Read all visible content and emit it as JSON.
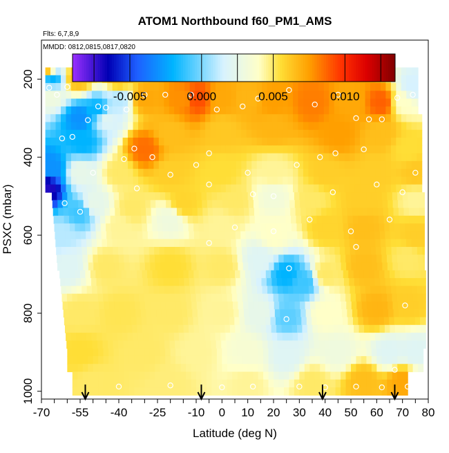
{
  "chart_data": {
    "type": "heatmap",
    "title": "ATOM1 Northbound f60_PM1_AMS",
    "notes": [
      "Flts: 6,7,8,9",
      "MMDD: 0812,0815,0817,0820"
    ],
    "xlabel": "Latitude (deg N)",
    "ylabel": "PSXC (mbar)",
    "xlim": [
      -70,
      80
    ],
    "ylim": [
      1020,
      100
    ],
    "x_ticks": [
      -70,
      -55,
      -40,
      -25,
      -10,
      0,
      10,
      20,
      30,
      40,
      50,
      60,
      70,
      80
    ],
    "y_ticks": [
      200,
      400,
      600,
      800,
      1000
    ],
    "colorbar": {
      "min": -0.009,
      "max": 0.0135,
      "ticks": [
        -0.005,
        0.0,
        0.005,
        0.01
      ],
      "tick_labels": [
        "-0.005",
        "0.000",
        "0.005",
        "0.010"
      ],
      "stops": [
        {
          "v": -0.009,
          "c": "#9b30ff"
        },
        {
          "v": -0.0065,
          "c": "#0000b4"
        },
        {
          "v": -0.0045,
          "c": "#1e5fff"
        },
        {
          "v": -0.002,
          "c": "#00b4ff"
        },
        {
          "v": 0.0015,
          "c": "#d7f2ff"
        },
        {
          "v": 0.004,
          "c": "#ffffc8"
        },
        {
          "v": 0.0055,
          "c": "#ffde36"
        },
        {
          "v": 0.0075,
          "c": "#ff9f00"
        },
        {
          "v": 0.0098,
          "c": "#ff3000"
        },
        {
          "v": 0.0115,
          "c": "#dc0000"
        },
        {
          "v": 0.0135,
          "c": "#800000"
        }
      ]
    },
    "arrow_latitudes": [
      -53,
      -8,
      39,
      67
    ],
    "control_points": [
      {
        "lat": -68,
        "p": 180,
        "v": 0.0062
      },
      {
        "lat": -66,
        "p": 200,
        "v": -0.002
      },
      {
        "lat": -66,
        "p": 240,
        "v": 0.003
      },
      {
        "lat": -68,
        "p": 480,
        "v": -0.007
      },
      {
        "lat": -66,
        "p": 430,
        "v": -0.003
      },
      {
        "lat": -56,
        "p": 200,
        "v": 0.0065
      },
      {
        "lat": -55,
        "p": 300,
        "v": -0.003
      },
      {
        "lat": -54,
        "p": 360,
        "v": -0.002
      },
      {
        "lat": -48,
        "p": 280,
        "v": -0.002
      },
      {
        "lat": -55,
        "p": 540,
        "v": -0.001
      },
      {
        "lat": -40,
        "p": 200,
        "v": 0.0068
      },
      {
        "lat": -40,
        "p": 250,
        "v": 0.001
      },
      {
        "lat": -45,
        "p": 300,
        "v": 0.002
      },
      {
        "lat": -30,
        "p": 250,
        "v": 0.0072
      },
      {
        "lat": -15,
        "p": 250,
        "v": 0.0078
      },
      {
        "lat": -10,
        "p": 250,
        "v": 0.0092
      },
      {
        "lat": 0,
        "p": 250,
        "v": 0.0072
      },
      {
        "lat": 10,
        "p": 250,
        "v": 0.0068
      },
      {
        "lat": 20,
        "p": 260,
        "v": 0.0075
      },
      {
        "lat": 35,
        "p": 260,
        "v": 0.0082
      },
      {
        "lat": 50,
        "p": 260,
        "v": 0.0072
      },
      {
        "lat": 62,
        "p": 260,
        "v": 0.0088
      },
      {
        "lat": 70,
        "p": 260,
        "v": 0.004
      },
      {
        "lat": 74,
        "p": 220,
        "v": 0.0015
      },
      {
        "lat": -30,
        "p": 380,
        "v": 0.0085
      },
      {
        "lat": -20,
        "p": 340,
        "v": 0.0065
      },
      {
        "lat": 0,
        "p": 330,
        "v": 0.0062
      },
      {
        "lat": 20,
        "p": 320,
        "v": 0.0068
      },
      {
        "lat": 45,
        "p": 340,
        "v": 0.0075
      },
      {
        "lat": 62,
        "p": 340,
        "v": 0.0065
      },
      {
        "lat": 72,
        "p": 380,
        "v": 0.0055
      },
      {
        "lat": -55,
        "p": 440,
        "v": 0.0025
      },
      {
        "lat": -40,
        "p": 440,
        "v": 0.005
      },
      {
        "lat": -20,
        "p": 440,
        "v": 0.006
      },
      {
        "lat": 0,
        "p": 440,
        "v": 0.0055
      },
      {
        "lat": 20,
        "p": 440,
        "v": 0.0045
      },
      {
        "lat": 40,
        "p": 440,
        "v": 0.006
      },
      {
        "lat": 60,
        "p": 440,
        "v": 0.006
      },
      {
        "lat": 75,
        "p": 440,
        "v": 0.0062
      },
      {
        "lat": -50,
        "p": 520,
        "v": 0.0025
      },
      {
        "lat": -35,
        "p": 530,
        "v": 0.005
      },
      {
        "lat": -15,
        "p": 520,
        "v": 0.0058
      },
      {
        "lat": 5,
        "p": 510,
        "v": 0.005
      },
      {
        "lat": 20,
        "p": 500,
        "v": 0.0032
      },
      {
        "lat": 35,
        "p": 510,
        "v": 0.005
      },
      {
        "lat": 55,
        "p": 510,
        "v": 0.006
      },
      {
        "lat": 75,
        "p": 510,
        "v": 0.0045
      },
      {
        "lat": -62,
        "p": 600,
        "v": 0.001
      },
      {
        "lat": -40,
        "p": 580,
        "v": 0.0045
      },
      {
        "lat": -20,
        "p": 560,
        "v": 0.003
      },
      {
        "lat": 0,
        "p": 580,
        "v": 0.0045
      },
      {
        "lat": 20,
        "p": 600,
        "v": 0.004
      },
      {
        "lat": 40,
        "p": 580,
        "v": 0.0058
      },
      {
        "lat": 55,
        "p": 580,
        "v": 0.0065
      },
      {
        "lat": 75,
        "p": 600,
        "v": 0.006
      },
      {
        "lat": -60,
        "p": 680,
        "v": 0.002
      },
      {
        "lat": -45,
        "p": 680,
        "v": 0.005
      },
      {
        "lat": -20,
        "p": 680,
        "v": 0.0055
      },
      {
        "lat": 0,
        "p": 680,
        "v": 0.005
      },
      {
        "lat": 15,
        "p": 660,
        "v": 0.002
      },
      {
        "lat": 25,
        "p": 700,
        "v": -0.002
      },
      {
        "lat": 32,
        "p": 720,
        "v": -0.001
      },
      {
        "lat": 40,
        "p": 700,
        "v": 0.005
      },
      {
        "lat": 55,
        "p": 680,
        "v": 0.0065
      },
      {
        "lat": 72,
        "p": 660,
        "v": 0.005
      },
      {
        "lat": -55,
        "p": 800,
        "v": 0.005
      },
      {
        "lat": -40,
        "p": 800,
        "v": 0.0052
      },
      {
        "lat": -20,
        "p": 800,
        "v": 0.005
      },
      {
        "lat": 0,
        "p": 800,
        "v": 0.0045
      },
      {
        "lat": 15,
        "p": 800,
        "v": 0.0025
      },
      {
        "lat": 25,
        "p": 810,
        "v": -0.0005
      },
      {
        "lat": 40,
        "p": 800,
        "v": 0.004
      },
      {
        "lat": 60,
        "p": 790,
        "v": 0.0068
      },
      {
        "lat": 72,
        "p": 780,
        "v": 0.006
      },
      {
        "lat": -55,
        "p": 900,
        "v": 0.0055
      },
      {
        "lat": -30,
        "p": 900,
        "v": 0.005
      },
      {
        "lat": -10,
        "p": 900,
        "v": 0.0045
      },
      {
        "lat": 10,
        "p": 900,
        "v": 0.0035
      },
      {
        "lat": 25,
        "p": 910,
        "v": 0.002
      },
      {
        "lat": 45,
        "p": 900,
        "v": 0.003
      },
      {
        "lat": 65,
        "p": 900,
        "v": 0.002
      },
      {
        "lat": 75,
        "p": 900,
        "v": 0.002
      },
      {
        "lat": -50,
        "p": 980,
        "v": 0.005
      },
      {
        "lat": -20,
        "p": 980,
        "v": 0.0048
      },
      {
        "lat": 10,
        "p": 980,
        "v": 0.0045
      },
      {
        "lat": 35,
        "p": 980,
        "v": 0.005
      },
      {
        "lat": 55,
        "p": 975,
        "v": 0.0065
      },
      {
        "lat": 70,
        "p": 975,
        "v": 0.0072
      }
    ],
    "sample_points": [
      {
        "lat": -67,
        "p": 222
      },
      {
        "lat": -60,
        "p": 220
      },
      {
        "lat": -64,
        "p": 240
      },
      {
        "lat": -48,
        "p": 270
      },
      {
        "lat": -45,
        "p": 273
      },
      {
        "lat": -52,
        "p": 305
      },
      {
        "lat": -58,
        "p": 348
      },
      {
        "lat": -62,
        "p": 352
      },
      {
        "lat": -61,
        "p": 518
      },
      {
        "lat": -55,
        "p": 540
      },
      {
        "lat": -37,
        "p": 278
      },
      {
        "lat": -30,
        "p": 240
      },
      {
        "lat": -22,
        "p": 240
      },
      {
        "lat": -12,
        "p": 240
      },
      {
        "lat": -2,
        "p": 278
      },
      {
        "lat": 8,
        "p": 270
      },
      {
        "lat": 14,
        "p": 250
      },
      {
        "lat": 26,
        "p": 228
      },
      {
        "lat": 36,
        "p": 265
      },
      {
        "lat": 45,
        "p": 240
      },
      {
        "lat": 52,
        "p": 300
      },
      {
        "lat": 57,
        "p": 303
      },
      {
        "lat": 62,
        "p": 303
      },
      {
        "lat": 68,
        "p": 248
      },
      {
        "lat": 74,
        "p": 240
      },
      {
        "lat": 55,
        "p": 380
      },
      {
        "lat": 44,
        "p": 390
      },
      {
        "lat": 38,
        "p": 400
      },
      {
        "lat": 29,
        "p": 420
      },
      {
        "lat": -5,
        "p": 390
      },
      {
        "lat": -27,
        "p": 400
      },
      {
        "lat": -10,
        "p": 420
      },
      {
        "lat": -20,
        "p": 445
      },
      {
        "lat": -33,
        "p": 480
      },
      {
        "lat": -5,
        "p": 470
      },
      {
        "lat": 12,
        "p": 495
      },
      {
        "lat": 20,
        "p": 500
      },
      {
        "lat": 43,
        "p": 490
      },
      {
        "lat": 60,
        "p": 470
      },
      {
        "lat": 70,
        "p": 490
      },
      {
        "lat": 5,
        "p": 580
      },
      {
        "lat": -5,
        "p": 620
      },
      {
        "lat": 20,
        "p": 590
      },
      {
        "lat": 34,
        "p": 560
      },
      {
        "lat": 50,
        "p": 590
      },
      {
        "lat": 52,
        "p": 630
      },
      {
        "lat": 65,
        "p": 560
      },
      {
        "lat": 26,
        "p": 685
      },
      {
        "lat": 25,
        "p": 815
      },
      {
        "lat": 71,
        "p": 780
      },
      {
        "lat": 67,
        "p": 945
      },
      {
        "lat": -40,
        "p": 988
      },
      {
        "lat": -20,
        "p": 985
      },
      {
        "lat": 0,
        "p": 990
      },
      {
        "lat": 12,
        "p": 988
      },
      {
        "lat": 30,
        "p": 988
      },
      {
        "lat": 40,
        "p": 990
      },
      {
        "lat": 52,
        "p": 988
      },
      {
        "lat": 62,
        "p": 990
      },
      {
        "lat": 72,
        "p": 988
      },
      {
        "lat": -34,
        "p": 378
      },
      {
        "lat": -38,
        "p": 405
      },
      {
        "lat": -50,
        "p": 440
      },
      {
        "lat": 10,
        "p": 440
      },
      {
        "lat": 75,
        "p": 440
      }
    ]
  }
}
